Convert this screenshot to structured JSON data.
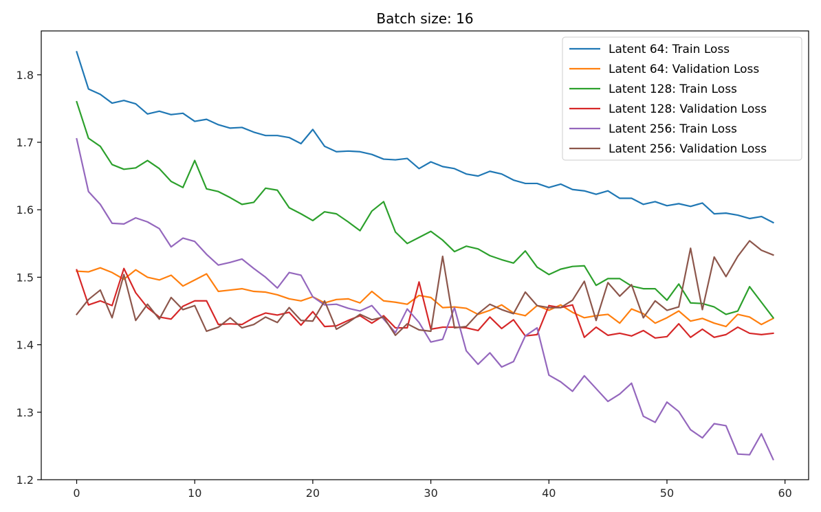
{
  "chart_data": {
    "type": "line",
    "title": "Batch size: 16",
    "xlabel": "",
    "ylabel": "",
    "xlim": [
      -3,
      62
    ],
    "ylim": [
      1.2,
      1.865
    ],
    "x_ticks": [
      0,
      10,
      20,
      30,
      40,
      50,
      60
    ],
    "y_ticks": [
      1.2,
      1.3,
      1.4,
      1.5,
      1.6,
      1.7,
      1.8
    ],
    "x_tick_labels": [
      "0",
      "10",
      "20",
      "30",
      "40",
      "50",
      "60"
    ],
    "y_tick_labels": [
      "1.2",
      "1.3",
      "1.4",
      "1.5",
      "1.6",
      "1.7",
      "1.8"
    ],
    "grid": false,
    "legend_position": "top-right",
    "x": [
      0,
      1,
      2,
      3,
      4,
      5,
      6,
      7,
      8,
      9,
      10,
      11,
      12,
      13,
      14,
      15,
      16,
      17,
      18,
      19,
      20,
      21,
      22,
      23,
      24,
      25,
      26,
      27,
      28,
      29,
      30,
      31,
      32,
      33,
      34,
      35,
      36,
      37,
      38,
      39,
      40,
      41,
      42,
      43,
      44,
      45,
      46,
      47,
      48,
      49,
      50,
      51,
      52,
      53,
      54,
      55,
      56,
      57,
      58,
      59
    ],
    "series": [
      {
        "name": "Latent 64: Train Loss",
        "color": "#1f77b4",
        "values": [
          1.834,
          1.779,
          1.771,
          1.758,
          1.762,
          1.757,
          1.742,
          1.746,
          1.741,
          1.743,
          1.731,
          1.734,
          1.726,
          1.721,
          1.722,
          1.715,
          1.71,
          1.71,
          1.707,
          1.698,
          1.719,
          1.694,
          1.686,
          1.687,
          1.686,
          1.682,
          1.675,
          1.674,
          1.676,
          1.661,
          1.671,
          1.664,
          1.661,
          1.653,
          1.65,
          1.657,
          1.653,
          1.644,
          1.639,
          1.639,
          1.633,
          1.638,
          1.63,
          1.628,
          1.623,
          1.628,
          1.617,
          1.617,
          1.608,
          1.612,
          1.606,
          1.609,
          1.605,
          1.61,
          1.594,
          1.595,
          1.592,
          1.587,
          1.59,
          1.581
        ]
      },
      {
        "name": "Latent 64: Validation Loss",
        "color": "#ff7f0e",
        "values": [
          1.509,
          1.508,
          1.514,
          1.507,
          1.497,
          1.511,
          1.5,
          1.496,
          1.503,
          1.487,
          1.496,
          1.505,
          1.479,
          1.481,
          1.483,
          1.479,
          1.478,
          1.474,
          1.468,
          1.465,
          1.471,
          1.462,
          1.467,
          1.468,
          1.462,
          1.479,
          1.465,
          1.463,
          1.46,
          1.473,
          1.47,
          1.455,
          1.456,
          1.454,
          1.445,
          1.451,
          1.459,
          1.447,
          1.443,
          1.458,
          1.451,
          1.459,
          1.448,
          1.44,
          1.443,
          1.445,
          1.432,
          1.453,
          1.446,
          1.432,
          1.44,
          1.45,
          1.435,
          1.439,
          1.432,
          1.427,
          1.445,
          1.441,
          1.43,
          1.439
        ]
      },
      {
        "name": "Latent 128: Train Loss",
        "color": "#2ca02c",
        "values": [
          1.76,
          1.706,
          1.694,
          1.667,
          1.66,
          1.662,
          1.673,
          1.661,
          1.642,
          1.633,
          1.673,
          1.631,
          1.627,
          1.618,
          1.608,
          1.611,
          1.632,
          1.629,
          1.603,
          1.594,
          1.584,
          1.597,
          1.594,
          1.582,
          1.569,
          1.598,
          1.612,
          1.567,
          1.55,
          1.559,
          1.568,
          1.555,
          1.538,
          1.546,
          1.542,
          1.532,
          1.526,
          1.521,
          1.539,
          1.515,
          1.504,
          1.512,
          1.516,
          1.517,
          1.488,
          1.498,
          1.498,
          1.487,
          1.483,
          1.483,
          1.466,
          1.49,
          1.462,
          1.461,
          1.456,
          1.445,
          1.45,
          1.486,
          1.463,
          1.44
        ]
      },
      {
        "name": "Latent 128: Validation Loss",
        "color": "#d62728",
        "values": [
          1.511,
          1.459,
          1.465,
          1.458,
          1.513,
          1.477,
          1.455,
          1.441,
          1.438,
          1.457,
          1.465,
          1.465,
          1.43,
          1.431,
          1.43,
          1.44,
          1.447,
          1.444,
          1.448,
          1.429,
          1.449,
          1.427,
          1.428,
          1.436,
          1.443,
          1.432,
          1.443,
          1.425,
          1.425,
          1.493,
          1.423,
          1.426,
          1.426,
          1.425,
          1.421,
          1.441,
          1.424,
          1.437,
          1.413,
          1.415,
          1.458,
          1.455,
          1.459,
          1.411,
          1.426,
          1.414,
          1.417,
          1.413,
          1.421,
          1.41,
          1.412,
          1.431,
          1.411,
          1.423,
          1.411,
          1.415,
          1.426,
          1.417,
          1.415,
          1.417
        ]
      },
      {
        "name": "Latent 256: Train Loss",
        "color": "#9467bd",
        "values": [
          1.705,
          1.627,
          1.608,
          1.58,
          1.579,
          1.588,
          1.582,
          1.572,
          1.545,
          1.558,
          1.553,
          1.534,
          1.518,
          1.522,
          1.527,
          1.513,
          1.5,
          1.484,
          1.507,
          1.503,
          1.471,
          1.459,
          1.46,
          1.454,
          1.45,
          1.458,
          1.438,
          1.418,
          1.453,
          1.433,
          1.404,
          1.408,
          1.455,
          1.391,
          1.371,
          1.388,
          1.367,
          1.375,
          1.413,
          1.425,
          1.355,
          1.345,
          1.331,
          1.354,
          1.335,
          1.316,
          1.327,
          1.343,
          1.294,
          1.285,
          1.315,
          1.301,
          1.274,
          1.262,
          1.283,
          1.28,
          1.238,
          1.237,
          1.268,
          1.23
        ]
      },
      {
        "name": "Latent 256: Validation Loss",
        "color": "#8c564b",
        "values": [
          1.445,
          1.467,
          1.481,
          1.44,
          1.504,
          1.436,
          1.46,
          1.438,
          1.47,
          1.452,
          1.458,
          1.42,
          1.426,
          1.44,
          1.425,
          1.43,
          1.441,
          1.433,
          1.455,
          1.436,
          1.435,
          1.465,
          1.423,
          1.433,
          1.445,
          1.437,
          1.441,
          1.414,
          1.431,
          1.422,
          1.42,
          1.531,
          1.425,
          1.427,
          1.446,
          1.46,
          1.452,
          1.446,
          1.478,
          1.458,
          1.455,
          1.455,
          1.466,
          1.494,
          1.436,
          1.492,
          1.472,
          1.489,
          1.44,
          1.465,
          1.451,
          1.456,
          1.543,
          1.452,
          1.53,
          1.501,
          1.531,
          1.554,
          1.54,
          1.533
        ]
      }
    ]
  }
}
